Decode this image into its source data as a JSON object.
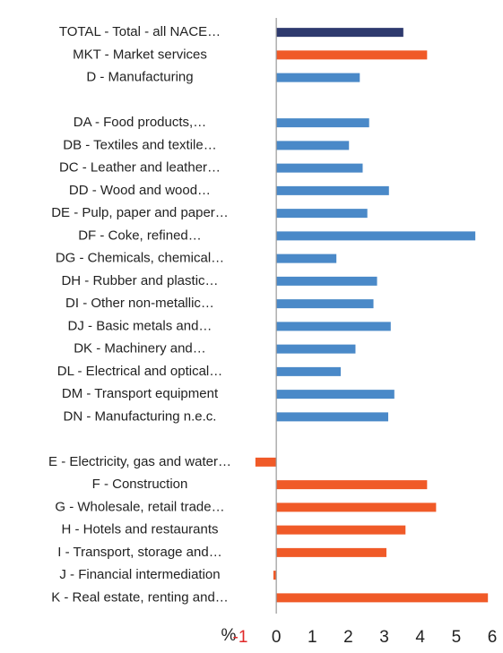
{
  "chart_data": {
    "type": "hbar",
    "categories": [
      "TOTAL - Total - all NACE…",
      "MKT - Market services",
      "D - Manufacturing",
      null,
      "DA - Food products,…",
      "DB - Textiles and textile…",
      "DC - Leather and leather…",
      "DD - Wood and wood…",
      "DE - Pulp, paper and paper…",
      "DF - Coke, refined…",
      "DG - Chemicals, chemical…",
      "DH - Rubber and plastic…",
      "DI - Other non-metallic…",
      "DJ - Basic metals and…",
      "DK - Machinery and…",
      "DL - Electrical and optical…",
      "DM - Transport equipment",
      "DN - Manufacturing n.e.c.",
      null,
      "E - Electricity, gas and water…",
      "F - Construction",
      "G - Wholesale, retail trade…",
      "H - Hotels and restaurants",
      "I - Transport, storage and…",
      "J - Financial intermediation",
      "K - Real estate, renting and…"
    ],
    "values": [
      3.53,
      4.19,
      2.32,
      null,
      2.58,
      2.02,
      2.4,
      3.13,
      2.53,
      5.53,
      1.67,
      2.8,
      2.7,
      3.18,
      2.2,
      1.79,
      3.28,
      3.11,
      null,
      -0.58,
      4.19,
      4.44,
      3.59,
      3.06,
      -0.08,
      5.88
    ],
    "colors": [
      "#2e3a6e",
      "#f05a28",
      "#4a89c8",
      null,
      "#4a89c8",
      "#4a89c8",
      "#4a89c8",
      "#4a89c8",
      "#4a89c8",
      "#4a89c8",
      "#4a89c8",
      "#4a89c8",
      "#4a89c8",
      "#4a89c8",
      "#4a89c8",
      "#4a89c8",
      "#4a89c8",
      "#4a89c8",
      null,
      "#f05a28",
      "#f05a28",
      "#f05a28",
      "#f05a28",
      "#f05a28",
      "#f05a28",
      "#f05a28"
    ],
    "xlabel": "%",
    "xlim": [
      -1,
      6
    ],
    "xticks": [
      -1,
      0,
      1,
      2,
      3,
      4,
      5,
      6
    ],
    "negative_tick_color": "#e02828"
  }
}
